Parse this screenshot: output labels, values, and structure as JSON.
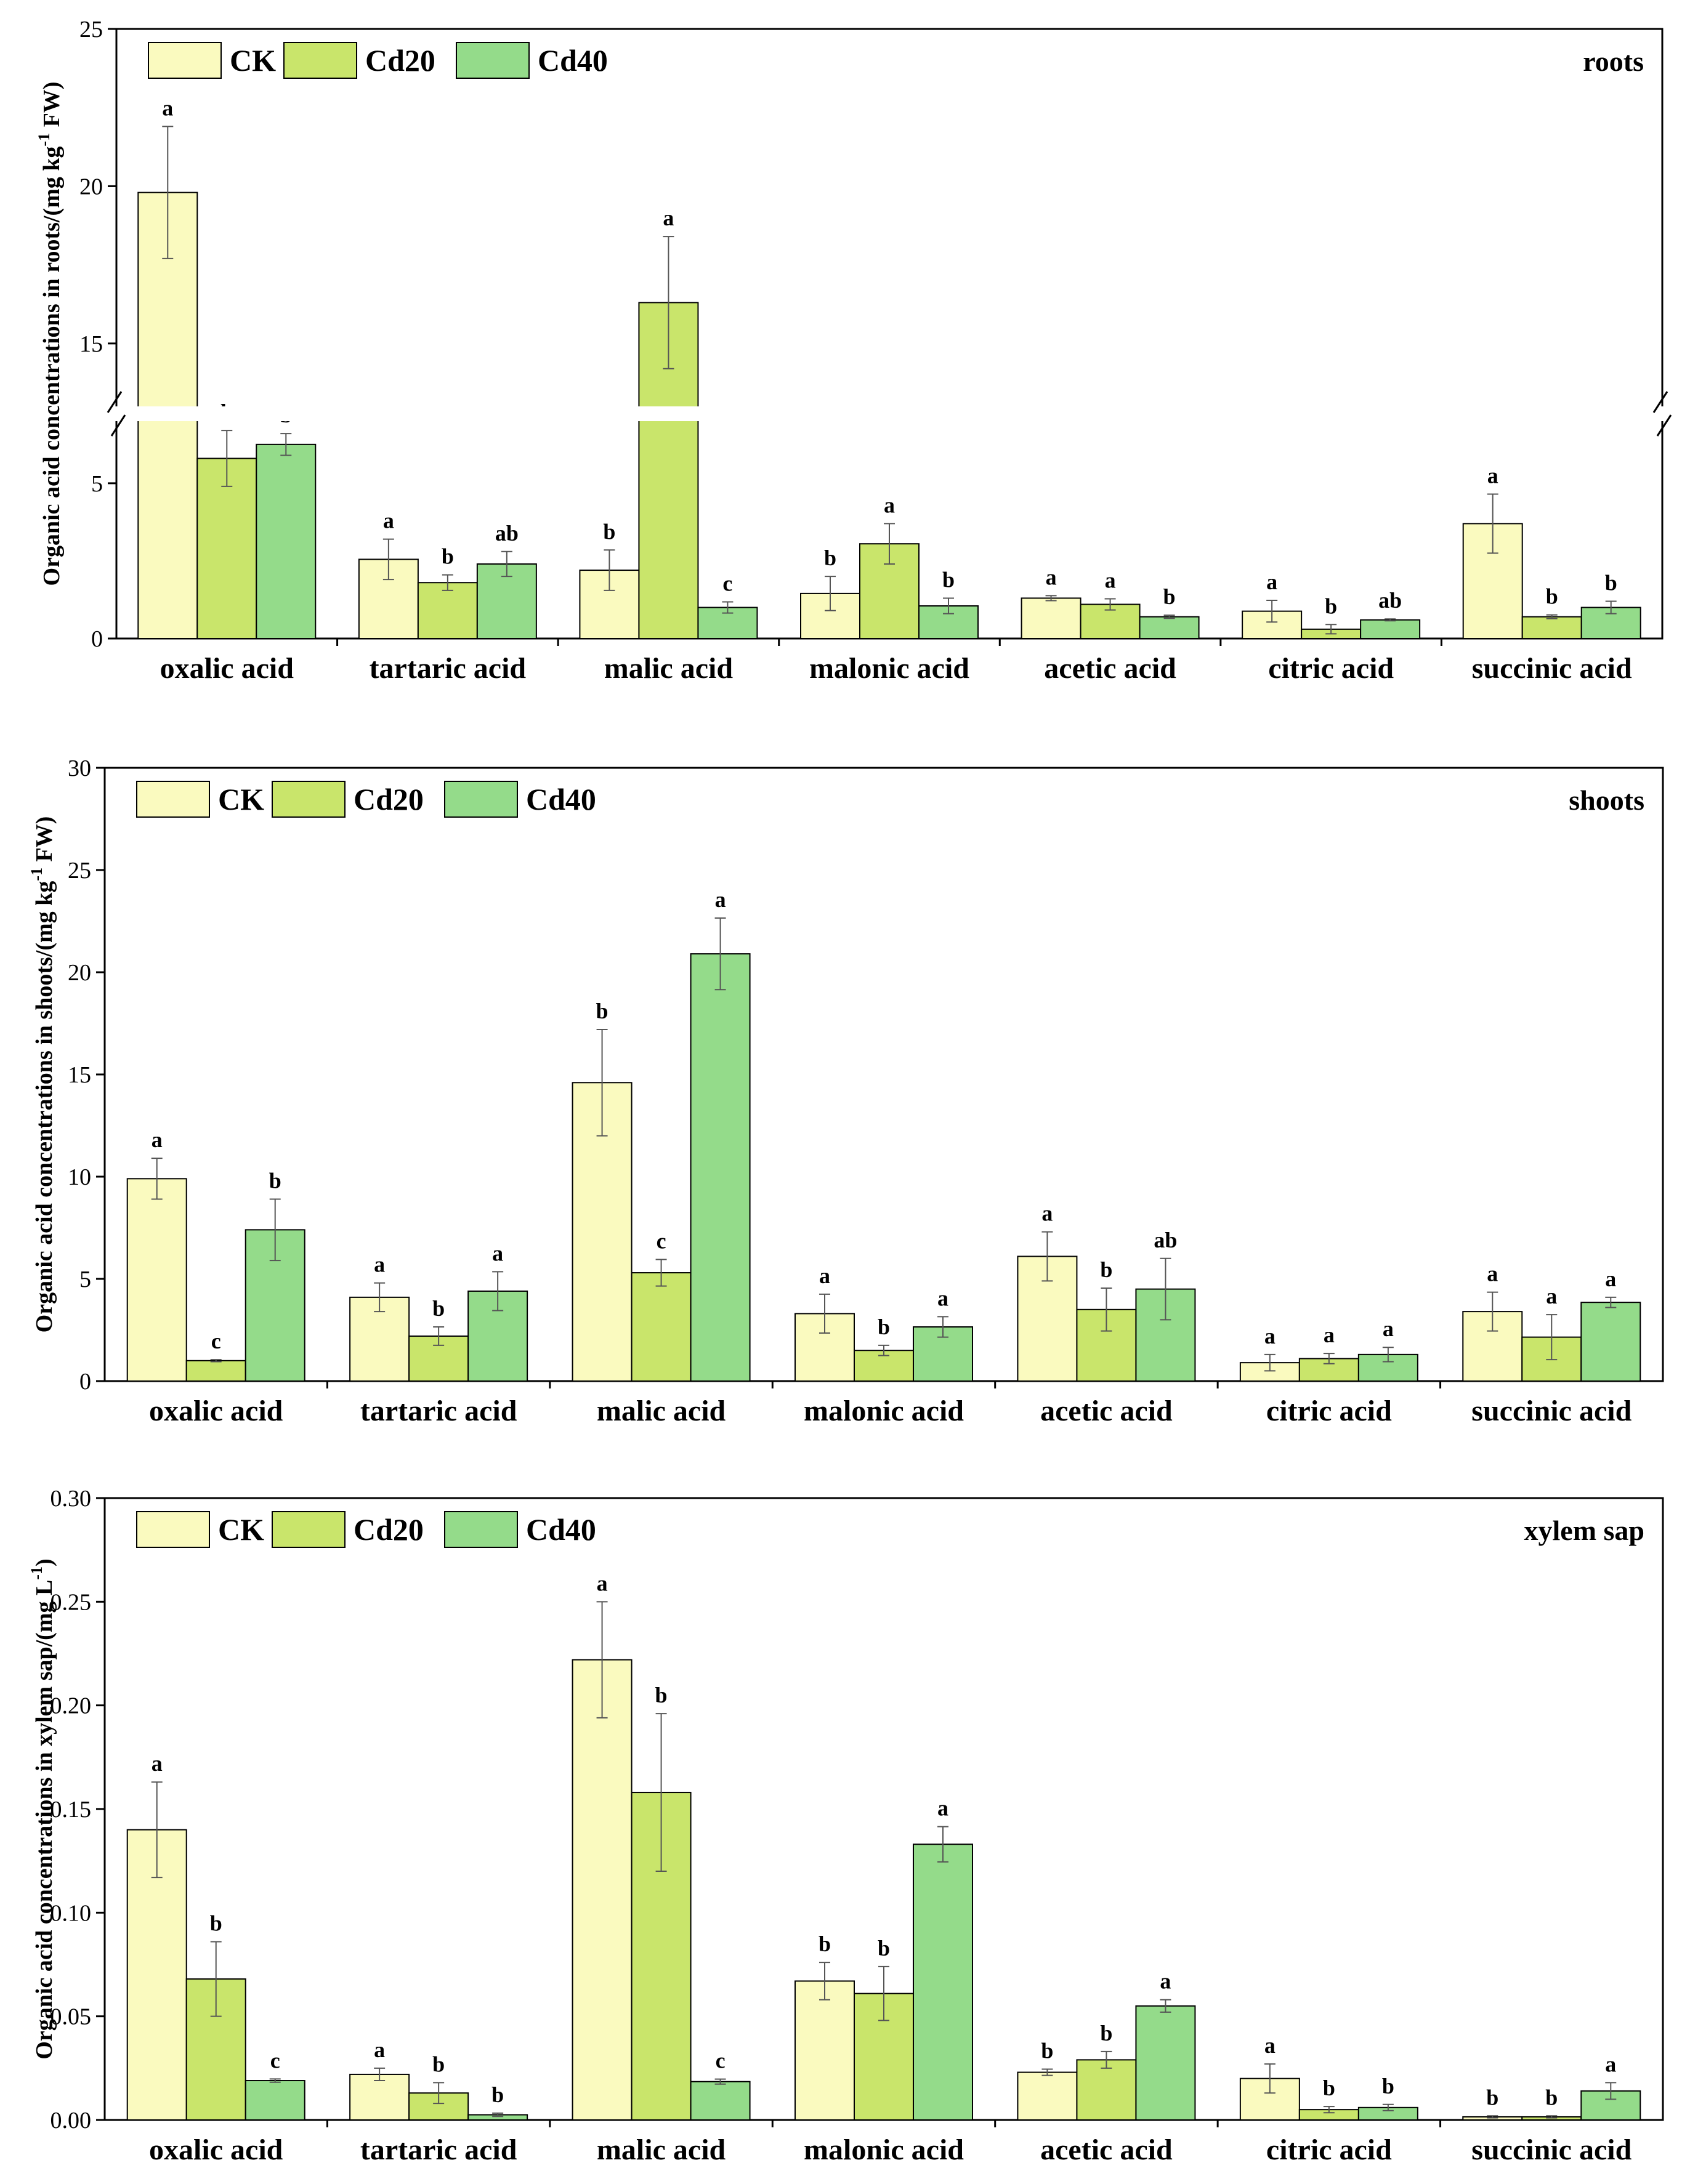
{
  "colors": {
    "CK": "#FAFABF",
    "Cd20": "#C9E56B",
    "Cd40": "#94DB8A",
    "stroke": "#000000",
    "errbar": "#555555"
  },
  "legend": [
    "CK",
    "Cd20",
    "Cd40"
  ],
  "chart_data": [
    {
      "type": "bar",
      "panel_label": "roots",
      "ylabel": "Organic acid concentrations in roots/(mg kg-1 FW)",
      "ylabel_parts": {
        "before": "Organic acid concentrations in roots/(mg kg",
        "sup": "-1",
        "after": " FW)"
      },
      "categories": [
        "oxalic acid",
        "tartaric acid",
        "malic acid",
        "malonic acid",
        "acetic acid",
        "citric acid",
        "succinic acid"
      ],
      "series": [
        {
          "name": "CK",
          "values": [
            19.8,
            2.55,
            2.2,
            1.45,
            1.3,
            0.88,
            3.7
          ],
          "errors": [
            2.1,
            0.65,
            0.65,
            0.55,
            0.08,
            0.35,
            0.95
          ],
          "labels": [
            "a",
            "a",
            "b",
            "b",
            "a",
            "a",
            "a"
          ]
        },
        {
          "name": "Cd20",
          "values": [
            5.8,
            1.8,
            16.3,
            3.05,
            1.1,
            0.3,
            0.7
          ],
          "errors": [
            0.9,
            0.25,
            2.1,
            0.65,
            0.18,
            0.15,
            0.06
          ],
          "labels": [
            "b",
            "b",
            "a",
            "a",
            "a",
            "b",
            "b"
          ]
        },
        {
          "name": "Cd40",
          "values": [
            6.25,
            2.4,
            1.0,
            1.05,
            0.7,
            0.6,
            1.0
          ],
          "errors": [
            0.35,
            0.4,
            0.18,
            0.25,
            0.05,
            0.03,
            0.2
          ],
          "labels": [
            "b",
            "ab",
            "c",
            "b",
            "b",
            "ab",
            "b"
          ]
        }
      ],
      "ylim": [
        0,
        25
      ],
      "axis_break": [
        7,
        13
      ],
      "yticks_lower": [
        0,
        5
      ],
      "yticks_upper": [
        15,
        20,
        25
      ],
      "legend_position": "top-left"
    },
    {
      "type": "bar",
      "panel_label": "shoots",
      "ylabel": "Organic acid concentrations in shoots/(mg kg-1 FW)",
      "ylabel_parts": {
        "before": "Organic acid concentrations in shoots/(mg kg",
        "sup": "-1",
        "after": " FW)"
      },
      "categories": [
        "oxalic acid",
        "tartaric acid",
        "malic acid",
        "malonic acid",
        "acetic acid",
        "citric acid",
        "succinic acid"
      ],
      "series": [
        {
          "name": "CK",
          "values": [
            9.9,
            4.1,
            14.6,
            3.3,
            6.1,
            0.9,
            3.4
          ],
          "errors": [
            1.0,
            0.7,
            2.6,
            0.95,
            1.2,
            0.4,
            0.95
          ],
          "labels": [
            "a",
            "a",
            "b",
            "a",
            "a",
            "a",
            "a"
          ]
        },
        {
          "name": "Cd20",
          "values": [
            1.0,
            2.2,
            5.3,
            1.5,
            3.5,
            1.1,
            2.15
          ],
          "errors": [
            0.05,
            0.45,
            0.65,
            0.25,
            1.05,
            0.25,
            1.1
          ],
          "labels": [
            "c",
            "b",
            "c",
            "b",
            "b",
            "a",
            "a"
          ]
        },
        {
          "name": "Cd40",
          "values": [
            7.4,
            4.4,
            20.9,
            2.65,
            4.5,
            1.3,
            3.85
          ],
          "errors": [
            1.5,
            0.95,
            1.75,
            0.5,
            1.5,
            0.35,
            0.25
          ],
          "labels": [
            "b",
            "a",
            "a",
            "a",
            "ab",
            "a",
            "a"
          ]
        }
      ],
      "ylim": [
        0,
        30
      ],
      "yticks": [
        0,
        5,
        10,
        15,
        20,
        25,
        30
      ],
      "legend_position": "top-left"
    },
    {
      "type": "bar",
      "panel_label": "xylem sap",
      "ylabel": "Organic acid concentrations in xylem sap/(mg L-1)",
      "ylabel_parts": {
        "before": "Organic acid concentrations in xylem sap/(mg L",
        "sup": "-1",
        "after": ")"
      },
      "categories": [
        "oxalic acid",
        "tartaric acid",
        "malic acid",
        "malonic acid",
        "acetic acid",
        "citric acid",
        "succinic acid"
      ],
      "series": [
        {
          "name": "CK",
          "values": [
            0.14,
            0.022,
            0.222,
            0.067,
            0.023,
            0.02,
            0.0015
          ],
          "errors": [
            0.023,
            0.003,
            0.028,
            0.009,
            0.0015,
            0.007,
            0.0005
          ],
          "labels": [
            "a",
            "a",
            "a",
            "b",
            "b",
            "a",
            "b"
          ]
        },
        {
          "name": "Cd20",
          "values": [
            0.068,
            0.013,
            0.158,
            0.061,
            0.029,
            0.005,
            0.0015
          ],
          "errors": [
            0.018,
            0.005,
            0.038,
            0.013,
            0.004,
            0.0015,
            0.0005
          ],
          "labels": [
            "b",
            "b",
            "b",
            "b",
            "b",
            "b",
            "b"
          ]
        },
        {
          "name": "Cd40",
          "values": [
            0.019,
            0.0025,
            0.0185,
            0.133,
            0.055,
            0.006,
            0.014
          ],
          "errors": [
            0.0008,
            0.0008,
            0.0012,
            0.0085,
            0.003,
            0.0015,
            0.004
          ],
          "labels": [
            "c",
            "b",
            "c",
            "a",
            "a",
            "b",
            "a"
          ]
        }
      ],
      "ylim": [
        0,
        0.3
      ],
      "yticks": [
        "0.00",
        "0.05",
        "0.10",
        "0.15",
        "0.20",
        "0.25",
        "0.30"
      ],
      "legend_position": "top-left"
    }
  ]
}
